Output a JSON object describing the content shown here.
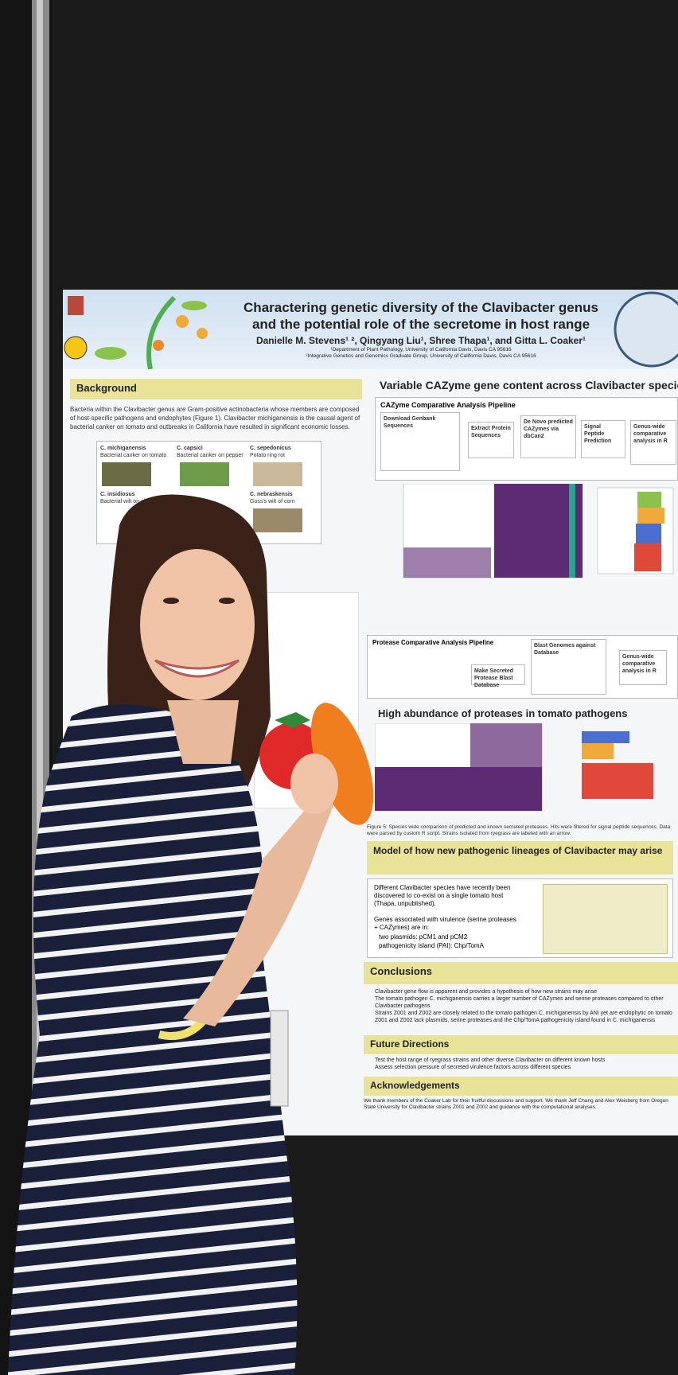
{
  "poster": {
    "title_line1": "Charactering genetic diversity of the Clavibacter genus",
    "title_line2": "and the potential role of the secretome in host range",
    "authors": "Danielle M. Stevens¹ ², Qingyang Liu¹, Shree Thapa¹, and Gitta L. Coaker¹",
    "affiliation1": "¹Department of Plant Pathology, University of California Davis, Davis CA 95616",
    "affiliation2": "²Integrative Genetics and Genomics Graduate Group, University of California Davis, Davis CA 95616",
    "left": {
      "heading": "Background",
      "body": "Bacteria within the Clavibacter genus are Gram-positive actinobacteria whose members are composed of host-specific pathogens and endophytes (Figure 1). Clavibacter michiganensis is the causal agent of bacterial canker on tomato and outbreaks in California have resulted in significant economic losses.",
      "species": [
        "C. michiganensis",
        "C. capsici",
        "C. sepedonicus",
        "C. insidiosus",
        "C. nebraskensis"
      ],
      "species_notes": [
        "Bacterial canker on tomato",
        "Bacterial canker on pepper",
        "Potato ring rot",
        "Bacterial wilt on alfalfa",
        "Goss's wilt of corn"
      ]
    },
    "right": {
      "heading": "Variable CAZyme gene content across Clavibacter species",
      "pipeline1": "CAZyme Comparative Analysis Pipeline",
      "pipeline1_steps": [
        "Download Genbank Sequences",
        "Extract Protein Sequences",
        "De Novo predicted CAZymes via dbCan2",
        "Signal Peptide Prediction",
        "Genus-wide comparative analysis in R"
      ],
      "pipeline2": "Protease Comparative Analysis Pipeline",
      "pipeline2_steps": [
        "Blast Genomes against Database",
        "Make Secreted Protease Blast Database",
        "Genus-wide comparative analysis in R"
      ],
      "protease_heading": "High abundance of proteases in tomato pathogens",
      "figure5": "Figure 5: Species wide comparison of predicted and known secreted proteases. Hits were filtered for signal peptide sequences. Data were parsed by custom R script. Strains isolated from ryegrass are labeled with an arrow.",
      "model_heading": "Model of how new pathogenic lineages of Clavibacter may arise",
      "model_text": "Different Clavibacter species have recently been discovered to co-exist on a single tomato host (Thapa, unpublished).",
      "model_genes": "Genes associated with virulence (serine proteases + CAZymes) are in:",
      "model_bullets": [
        "two plasmids: pCM1 and pCM2",
        "pathogenicity island (PAI): Chp/TomA"
      ],
      "conclusions_heading": "Conclusions",
      "conclusions": [
        "Clavibacter gene flow is apparent and provides a hypothesis of how new strains may arise",
        "The tomato pathogen C. michiganensis carries a larger number of CAZymes and serine proteases compared to other Clavibacter pathogens",
        "Strains Z001 and Z002 are closely related to the tomato pathogen C. michiganensis by ANI yet are endophytic on tomato",
        "Z001 and Z002 lack plasmids, serine proteases and the Chp/TomA pathogenicity island found in C. michiganensis"
      ],
      "future_heading": "Future Directions",
      "future": [
        "Test the host range of ryegrass strains and other diverse Clavibacter on different known hosts",
        "Assess selection pressure of secreted virulence factors across different species"
      ],
      "ack_heading": "Acknowledgements",
      "ack": "We thank members of the Coaker Lab for their fruitful discussions and support. We thank Jeff Chang and Alex Weisberg from Oregon State University for Clavibacter strains Z001 and Z002 and guidance with the computational analyses."
    }
  }
}
